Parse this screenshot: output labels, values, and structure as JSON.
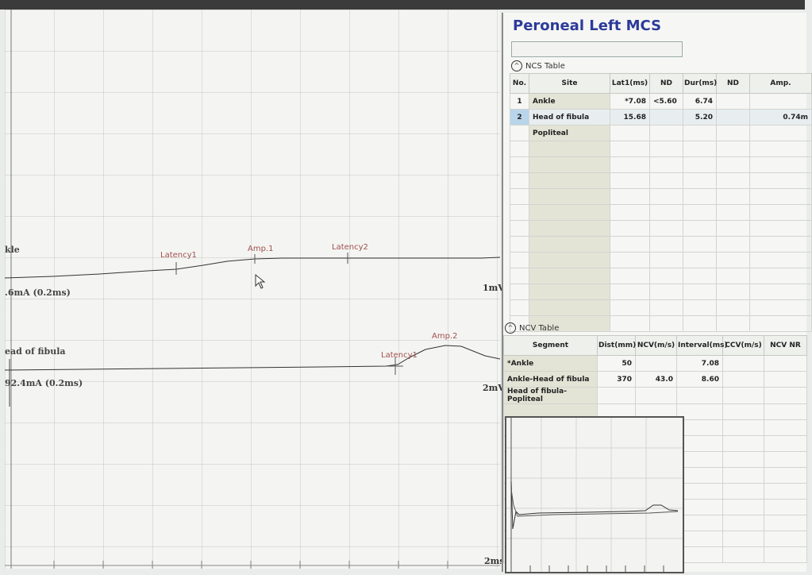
{
  "window": {
    "title": "Peroneal Left MCS"
  },
  "traces": [
    {
      "site": "Ankle",
      "label_visible": "kle",
      "stim": ".6mA (0.2ms)",
      "scale": "1mV",
      "markers": [
        "Latency1",
        "Amp.1",
        "Latency2"
      ]
    },
    {
      "site": "Head of fibula",
      "label_visible": "ead of fibula",
      "stim": "92.4mA (0.2ms)",
      "scale": "2mV",
      "markers": [
        "Latency1",
        "Amp.2"
      ]
    }
  ],
  "time_scale": "2ms",
  "ncs_table": {
    "label": "NCS Table",
    "columns": [
      "No.",
      "Site",
      "Lat1(ms)",
      "ND",
      "Dur(ms)",
      "ND",
      "Amp."
    ],
    "rows": [
      {
        "no": "1",
        "site": "Ankle",
        "lat1": "*7.08",
        "nd1": "<5.60",
        "dur": "6.74",
        "nd2": "",
        "amp": ""
      },
      {
        "no": "2",
        "site": "Head of fibula",
        "lat1": "15.68",
        "nd1": "",
        "dur": "5.20",
        "nd2": "",
        "amp": "0.74m"
      },
      {
        "no": "",
        "site": "Popliteal",
        "lat1": "",
        "nd1": "",
        "dur": "",
        "nd2": "",
        "amp": ""
      }
    ]
  },
  "ncv_table": {
    "label": "NCV Table",
    "columns": [
      "Segment",
      "Dist(mm)",
      "NCV(m/s)",
      "Interval(ms)",
      "CCV(m/s)",
      "NCV NR"
    ],
    "rows": [
      {
        "segment": "*Ankle",
        "dist": "50",
        "ncv": "",
        "interval": "7.08",
        "ccv": "",
        "nr": ""
      },
      {
        "segment": "Ankle-Head of fibula",
        "dist": "370",
        "ncv": "43.0",
        "interval": "8.60",
        "ccv": "",
        "nr": ""
      },
      {
        "segment": "Head of fibula-Popliteal",
        "dist": "",
        "ncv": "",
        "interval": "",
        "ccv": "",
        "nr": ""
      }
    ]
  },
  "icons": {
    "collapse": "chevron-up-icon",
    "cursor": "mouse-pointer-icon"
  }
}
